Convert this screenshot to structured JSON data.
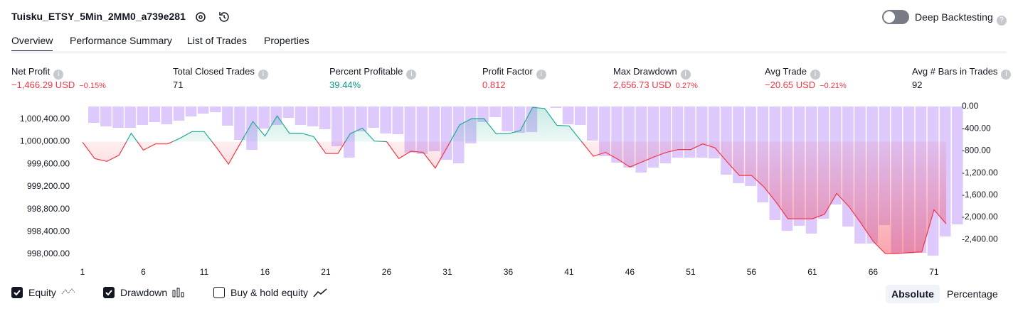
{
  "header": {
    "title": "Tuisku_ETSY_5Min_2MM0_a739e281",
    "toggle_label": "Deep Backtesting"
  },
  "tabs": [
    {
      "label": "Overview",
      "active": true
    },
    {
      "label": "Performance Summary",
      "active": false
    },
    {
      "label": "List of Trades",
      "active": false
    },
    {
      "label": "Properties",
      "active": false
    }
  ],
  "metrics": [
    {
      "label": "Net Profit",
      "value": "−1,466.29 USD",
      "extra": "−0.15%",
      "color": "#f23645"
    },
    {
      "label": "Total Closed Trades",
      "value": "71",
      "color": "#131722"
    },
    {
      "label": "Percent Profitable",
      "value": "39.44%",
      "color": "#089981"
    },
    {
      "label": "Profit Factor",
      "value": "0.812",
      "color": "#f23645"
    },
    {
      "label": "Max Drawdown",
      "value": "2,656.73 USD",
      "extra": "0.27%",
      "color": "#f23645"
    },
    {
      "label": "Avg Trade",
      "value": "−20.65 USD",
      "extra": "−0.21%",
      "color": "#f23645"
    },
    {
      "label": "Avg # Bars in Trades",
      "value": "92",
      "color": "#131722"
    }
  ],
  "chart": {
    "type": "line+bar",
    "x": [
      1,
      2,
      3,
      4,
      5,
      6,
      7,
      8,
      9,
      10,
      11,
      12,
      13,
      14,
      15,
      16,
      17,
      18,
      19,
      20,
      21,
      22,
      23,
      24,
      25,
      26,
      27,
      28,
      29,
      30,
      31,
      32,
      33,
      34,
      35,
      36,
      37,
      38,
      39,
      40,
      41,
      42,
      43,
      44,
      45,
      46,
      47,
      48,
      49,
      50,
      51,
      52,
      53,
      54,
      55,
      56,
      57,
      58,
      59,
      60,
      61,
      62,
      63,
      64,
      65,
      66,
      67,
      68,
      69,
      70,
      71,
      72
    ],
    "xlim": [
      1,
      72
    ],
    "xticks": [
      1,
      6,
      11,
      16,
      21,
      26,
      31,
      36,
      41,
      46,
      51,
      56,
      61,
      66,
      71
    ],
    "equity": {
      "up_color": "#22ab94",
      "down_color": "#f23645",
      "baseline": 1000000,
      "values": [
        999990,
        999700,
        999650,
        999760,
        1000150,
        999850,
        999960,
        999960,
        1000060,
        1000180,
        1000180,
        999900,
        999600,
        999980,
        1000360,
        1000100,
        1000460,
        1000150,
        1000150,
        1000090,
        999790,
        999790,
        1000140,
        1000240,
        1000010,
        1000000,
        999700,
        999830,
        999810,
        999530,
        999910,
        1000300,
        1000410,
        1000410,
        1000140,
        1000140,
        1000200,
        1000610,
        1000590,
        1000290,
        1000280,
        1000010,
        999740,
        999810,
        999690,
        999550,
        999640,
        999730,
        999810,
        999860,
        999860,
        999960,
        999890,
        999640,
        999400,
        999400,
        999200,
        998930,
        998630,
        998630,
        998630,
        998710,
        999080,
        998850,
        998550,
        998230,
        998010,
        998010,
        998030,
        998040,
        998790,
        998540
      ]
    },
    "ylim": [
      997975,
      1000625
    ],
    "yticks": [
      {
        "value": 998000,
        "label": "998,000.00"
      },
      {
        "value": 998400,
        "label": "998,400.00"
      },
      {
        "value": 998800,
        "label": "998,800.00"
      },
      {
        "value": 999200,
        "label": "999,200.00"
      },
      {
        "value": 999600,
        "label": "999,600.00"
      },
      {
        "value": 1000000,
        "label": "1,000,000.00"
      },
      {
        "value": 1000400,
        "label": "1,000,400.00"
      }
    ],
    "drawdown": {
      "color": "#d7bffb",
      "values": [
        -295,
        -359,
        -385,
        -385,
        -333,
        -282,
        -321,
        -256,
        -179,
        -128,
        -103,
        -346,
        -603,
        -782,
        -397,
        -333,
        -205,
        -333,
        -359,
        -410,
        -718,
        -923,
        -449,
        -385,
        -487,
        -500,
        -833,
        -859,
        -808,
        -962,
        -1026,
        -667,
        -282,
        -192,
        -449,
        -474,
        -462,
        0,
        -26,
        -321,
        -333,
        -615,
        -897,
        -1013,
        -1103,
        -1192,
        -1103,
        -1026,
        -923,
        -923,
        -923,
        -936,
        -1231,
        -1385,
        -1436,
        -1731,
        -2051,
        -2244,
        -2154,
        -2295,
        -2026,
        -1769,
        -2167,
        -2474,
        -2474,
        -2141,
        -2654,
        -2654,
        -2641,
        -2692,
        -2346,
        -2128
      ]
    },
    "y2lim": [
      0,
      -2692
    ],
    "y2ticks": [
      {
        "value": 0,
        "label": "0.00"
      },
      {
        "value": -400,
        "label": "-400.00"
      },
      {
        "value": -800,
        "label": "-800.00"
      },
      {
        "value": -1200,
        "label": "-1,200.00"
      },
      {
        "value": -1600,
        "label": "-1,600.00"
      },
      {
        "value": -2000,
        "label": "-2,000.00"
      },
      {
        "value": -2400,
        "label": "-2,400.00"
      }
    ]
  },
  "legend": [
    {
      "label": "Equity",
      "checked": true
    },
    {
      "label": "Drawdown",
      "checked": true
    },
    {
      "label": "Buy & hold equity",
      "checked": false
    }
  ],
  "scale_buttons": [
    {
      "label": "Absolute",
      "active": true
    },
    {
      "label": "Percentage",
      "active": false
    }
  ]
}
